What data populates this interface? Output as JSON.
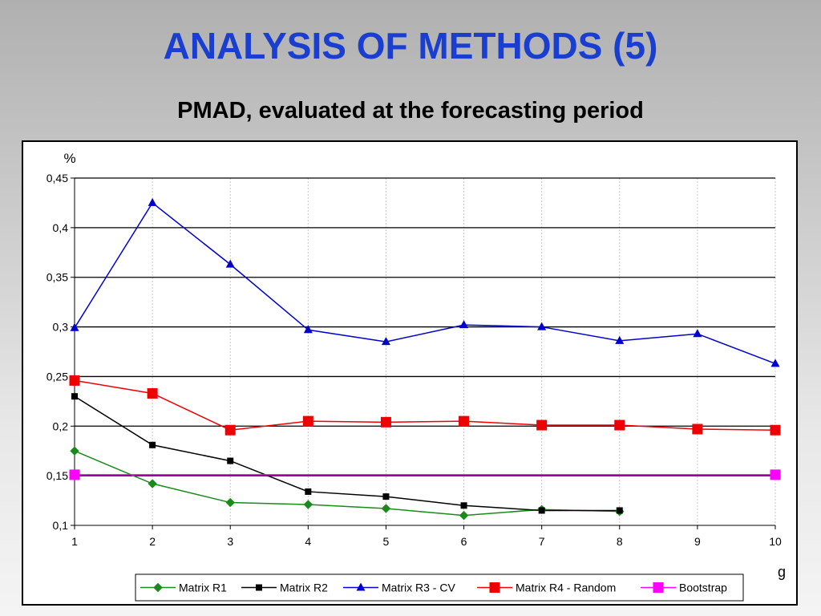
{
  "slide": {
    "title": "ANALYSIS OF METHODS (5)",
    "subtitle": "PMAD, evaluated at the forecasting period"
  },
  "colors": {
    "title": "#1a3fd0",
    "matrix_r1": "#1a8a1a",
    "matrix_r2": "#000000",
    "matrix_r3": "#0000cc",
    "matrix_r4": "#ee0000",
    "bootstrap": "#ff00ff"
  },
  "chart_data": {
    "type": "line",
    "ylabel": "%",
    "xlabel": "g",
    "x": [
      1,
      2,
      3,
      4,
      5,
      6,
      7,
      8,
      9,
      10
    ],
    "x_tick_labels": [
      "1",
      "2",
      "3",
      "4",
      "5",
      "6",
      "7",
      "8",
      "9",
      "10"
    ],
    "ylim": [
      0.1,
      0.45
    ],
    "y_ticks": [
      0.1,
      0.15,
      0.2,
      0.25,
      0.3,
      0.35,
      0.4,
      0.45
    ],
    "y_tick_labels": [
      "0,1",
      "0,15",
      "0,2",
      "0,25",
      "0,3",
      "0,35",
      "0,4",
      "0,45"
    ],
    "grid": "horizontal",
    "legend_position": "bottom",
    "series": [
      {
        "name": "Matrix R1",
        "marker": "diamond",
        "color": "#1a8a1a",
        "values": [
          0.175,
          0.142,
          0.123,
          0.121,
          0.117,
          0.11,
          0.116,
          0.114,
          null,
          null
        ]
      },
      {
        "name": "Matrix R2",
        "marker": "square-small",
        "color": "#000000",
        "values": [
          0.23,
          0.181,
          0.165,
          0.134,
          0.129,
          0.12,
          0.115,
          0.115,
          null,
          null
        ]
      },
      {
        "name": "Matrix R3 - CV",
        "marker": "triangle",
        "color": "#0000cc",
        "values": [
          0.299,
          0.425,
          0.363,
          0.297,
          0.285,
          0.302,
          0.3,
          0.286,
          0.293,
          0.263
        ]
      },
      {
        "name": "Matrix R4 - Random",
        "marker": "square",
        "color": "#ee0000",
        "values": [
          0.246,
          0.233,
          0.196,
          0.205,
          0.204,
          0.205,
          0.201,
          0.201,
          0.197,
          0.196
        ]
      },
      {
        "name": "Bootstrap",
        "marker": "square",
        "color": "#ff00ff",
        "values": [
          0.151,
          null,
          null,
          null,
          null,
          null,
          null,
          null,
          null,
          0.151
        ]
      }
    ]
  }
}
